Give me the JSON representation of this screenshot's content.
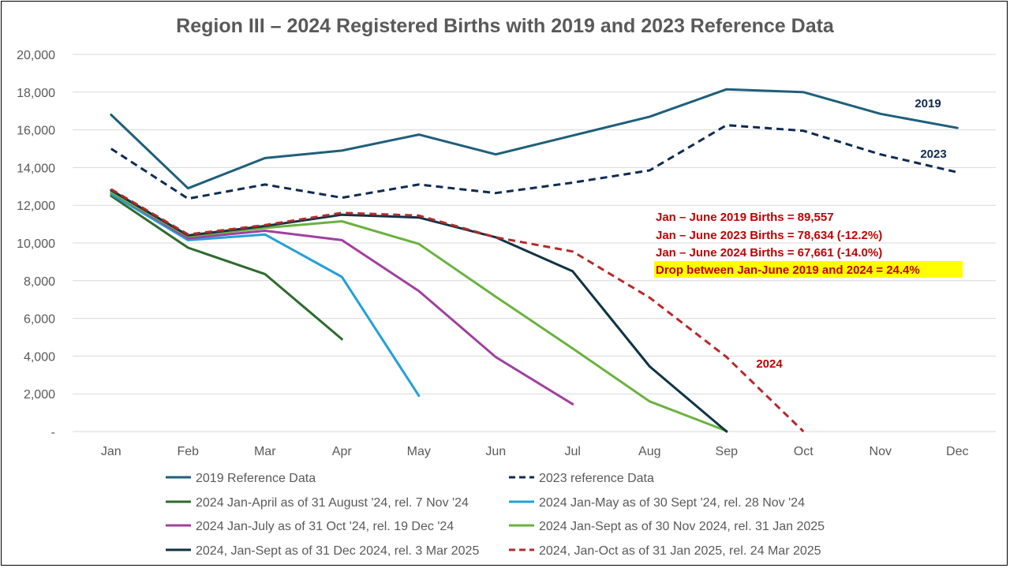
{
  "chart_data": {
    "type": "line",
    "title": "Region III – 2024 Registered Births with 2019 and 2023 Reference Data",
    "xlabel": "",
    "ylabel": "",
    "categories": [
      "Jan",
      "Feb",
      "Mar",
      "Apr",
      "May",
      "Jun",
      "Jul",
      "Aug",
      "Sep",
      "Oct",
      "Nov",
      "Dec"
    ],
    "ylim": [
      0,
      20000
    ],
    "yticks": [
      0,
      2000,
      4000,
      6000,
      8000,
      10000,
      12000,
      14000,
      16000,
      18000,
      20000
    ],
    "ytick_labels": [
      "-",
      "2,000",
      "4,000",
      "6,000",
      "8,000",
      "10,000",
      "12,000",
      "14,000",
      "16,000",
      "18,000",
      "20,000"
    ],
    "grid": true,
    "legend_position": "bottom",
    "series": [
      {
        "name": "2019 Reference Data",
        "color": "#1f5f7a",
        "dash": "solid",
        "values": [
          16800,
          12900,
          14500,
          14900,
          15750,
          14700,
          15700,
          16700,
          18150,
          18000,
          16850,
          16100
        ]
      },
      {
        "name": "2023 reference Data",
        "color": "#0d2b52",
        "dash": "dashed",
        "values": [
          15000,
          12350,
          13100,
          12400,
          13100,
          12650,
          13200,
          13850,
          16250,
          15950,
          14700,
          13750
        ]
      },
      {
        "name": "2024 Jan-April as of 31 August '24, rel. 7 Nov '24",
        "color": "#2e6b2e",
        "dash": "solid",
        "values": [
          12500,
          9750,
          8350,
          4900,
          null,
          null,
          null,
          null,
          null,
          null,
          null,
          null
        ]
      },
      {
        "name": "2024 Jan-May as of 30 Sept '24, rel. 28 Nov '24",
        "color": "#23a0d8",
        "dash": "solid",
        "values": [
          12600,
          10150,
          10450,
          8200,
          1900,
          null,
          null,
          null,
          null,
          null,
          null,
          null
        ]
      },
      {
        "name": "2024 Jan-July as of 31 Oct '24, rel. 19 Dec '24",
        "color": "#a040a0",
        "dash": "solid",
        "values": [
          12700,
          10250,
          10650,
          10150,
          7450,
          3950,
          1450,
          null,
          null,
          null,
          null,
          null
        ]
      },
      {
        "name": "2024 Jan-Sept as of 30 Nov 2024, rel. 31 Jan 2025",
        "color": "#6ab23e",
        "dash": "solid",
        "values": [
          12700,
          10350,
          10800,
          11150,
          9950,
          7150,
          4400,
          1600,
          30,
          null,
          null,
          null
        ]
      },
      {
        "name": "2024, Jan-Sept as of 31 Dec 2024, rel. 3 Mar 2025",
        "color": "#0f3345",
        "dash": "solid",
        "values": [
          12800,
          10400,
          10900,
          11500,
          11350,
          10300,
          8500,
          3450,
          0,
          null,
          null,
          null
        ]
      },
      {
        "name": "2024, Jan-Oct as of 31 Jan 2025, rel. 24 Mar 2025",
        "color": "#b52a2a",
        "dash": "dashed",
        "values": [
          12850,
          10450,
          10950,
          11600,
          11450,
          10300,
          9550,
          7100,
          3950,
          0,
          null,
          null
        ]
      }
    ],
    "series_labels": [
      {
        "text": "2019",
        "color": "#0d2b52"
      },
      {
        "text": "2023",
        "color": "#0d2b52"
      },
      {
        "text": "2024",
        "color": "#c00000"
      }
    ],
    "annotations": [
      "Jan – June 2019 Births  = 89,557",
      "Jan – June 2023 Births  = 78,634 (-12.2%)",
      "Jan – June 2024 Births  = 67,661 (-14.0%)",
      "Drop between Jan-June 2019 and 2024 = 24.4%"
    ],
    "highlight_color": "#ffff00"
  }
}
